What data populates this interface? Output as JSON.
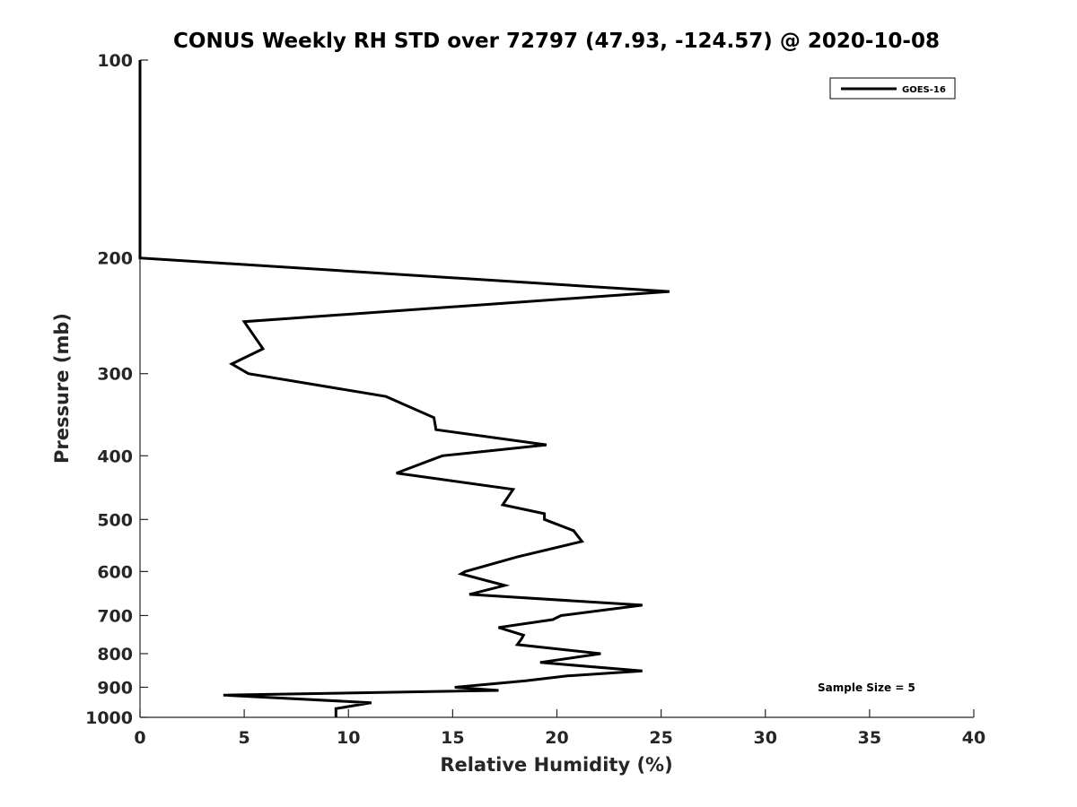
{
  "chart_data": {
    "type": "line",
    "title": "CONUS Weekly RH STD over 72797 (47.93, -124.57) @ 2020-10-08",
    "xlabel": "Relative Humidity (%)",
    "ylabel": "Pressure (mb)",
    "xlim": [
      0,
      40
    ],
    "ylim": [
      100,
      1000
    ],
    "y_scale": "log",
    "y_reversed": true,
    "x_ticks": [
      0,
      5,
      10,
      15,
      20,
      25,
      30,
      35,
      40
    ],
    "y_ticks": [
      100,
      200,
      300,
      400,
      500,
      600,
      700,
      800,
      900,
      1000
    ],
    "grid": false,
    "legend_position": "top-right",
    "annotation": "Sample Size = 5",
    "color": "#000000",
    "series": [
      {
        "name": "GOES-16",
        "points": [
          [
            0,
            100
          ],
          [
            0,
            150
          ],
          [
            0,
            200
          ],
          [
            25.4,
            225
          ],
          [
            5.0,
            250
          ],
          [
            5.9,
            275
          ],
          [
            4.4,
            290
          ],
          [
            5.2,
            300
          ],
          [
            11.8,
            325
          ],
          [
            14.1,
            350
          ],
          [
            14.2,
            365
          ],
          [
            19.5,
            385
          ],
          [
            14.5,
            400
          ],
          [
            12.3,
            425
          ],
          [
            17.9,
            450
          ],
          [
            17.4,
            475
          ],
          [
            19.4,
            490
          ],
          [
            19.4,
            500
          ],
          [
            20.8,
            520
          ],
          [
            21.2,
            540
          ],
          [
            18.1,
            570
          ],
          [
            15.6,
            600
          ],
          [
            15.4,
            605
          ],
          [
            17.5,
            630
          ],
          [
            15.8,
            650
          ],
          [
            24.1,
            675
          ],
          [
            20.2,
            700
          ],
          [
            19.8,
            710
          ],
          [
            17.2,
            730
          ],
          [
            18.4,
            750
          ],
          [
            18.3,
            760
          ],
          [
            18.1,
            775
          ],
          [
            22.1,
            800
          ],
          [
            19.2,
            825
          ],
          [
            24.1,
            850
          ],
          [
            20.5,
            865
          ],
          [
            18.5,
            880
          ],
          [
            15.1,
            900
          ],
          [
            17.2,
            910
          ],
          [
            4.0,
            925
          ],
          [
            11.1,
            950
          ],
          [
            9.4,
            970
          ],
          [
            9.4,
            1000
          ]
        ]
      }
    ]
  }
}
